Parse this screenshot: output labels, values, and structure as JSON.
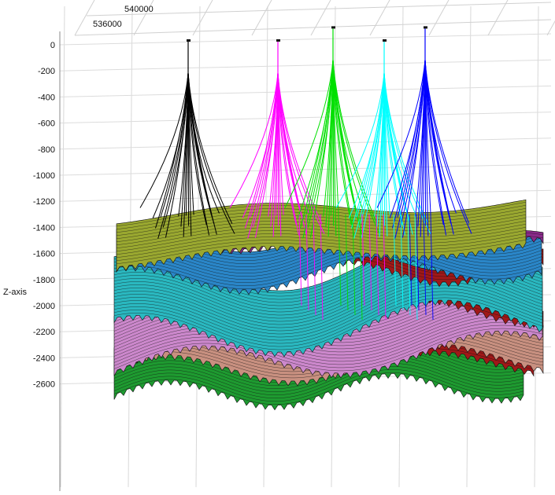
{
  "chart_data": {
    "type": "3d-wellbore-surfaces",
    "title": "",
    "zlabel": "Z-axis",
    "xlabel": "",
    "ylabel": "",
    "z_ticks": [
      0,
      -200,
      -400,
      -600,
      -800,
      -1000,
      -1200,
      -1400,
      -1600,
      -1800,
      -2000,
      -2200,
      -2400,
      -2600
    ],
    "z_tick_labels": [
      "0",
      "-200",
      "-400",
      "-600",
      "-800",
      "-1000",
      "-1200",
      "-1400",
      "-1600",
      "-1800",
      "-2000",
      "-2200",
      "-2400",
      "-2600"
    ],
    "zlim": [
      -2700,
      100
    ],
    "x_tick_labels": [
      "536000",
      "540000"
    ],
    "grid": true,
    "well_clusters": [
      {
        "name": "",
        "color": "#000000",
        "top_z": 0
      },
      {
        "name": "",
        "color": "#ff00ff",
        "top_z": 0
      },
      {
        "name": "",
        "color": "#00e000",
        "top_z": 100
      },
      {
        "name": "",
        "color": "#00ffff",
        "top_z": 0
      },
      {
        "name": "",
        "color": "#0000ff",
        "top_z": 100
      }
    ],
    "surface_colors": [
      "#9aa830",
      "#2a86c8",
      "#2ab8c0",
      "#cc88cc",
      "#c89080",
      "#1e9a30",
      "#a01818",
      "#8a2a8a"
    ]
  }
}
